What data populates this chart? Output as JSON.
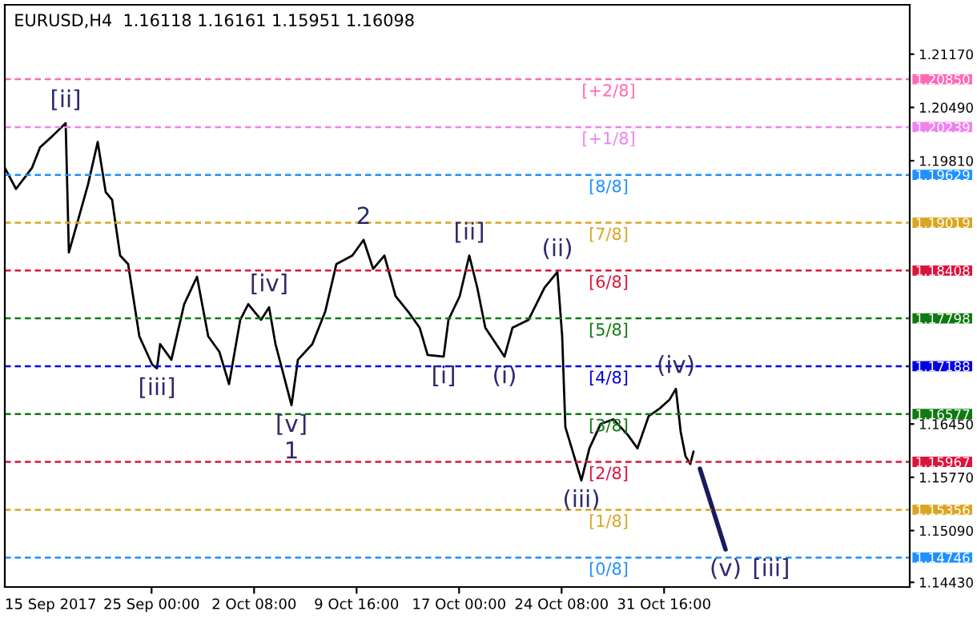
{
  "chart_data": {
    "type": "line",
    "title": "EURUSD,H4  1.16118 1.16161 1.15951 1.16098",
    "series": [
      {
        "color": "#000000",
        "x": [
          "2017-09-14T12:00",
          "2017-09-15T07:15",
          "2017-09-16T10:45",
          "2017-09-17T00:30",
          "2017-09-17T22:30",
          "2017-09-18T20:30",
          "2017-09-19T02:00",
          "2017-09-19T15:45",
          "2017-09-20T11:00",
          "2017-09-21T03:30",
          "2017-09-21T17:15",
          "2017-09-22T04:15",
          "2017-09-22T18:00",
          "2017-09-23T07:45",
          "2017-09-24T03:00",
          "2017-09-25T01:00",
          "2017-09-25T09:15",
          "2017-09-25T14:45",
          "2017-09-26T10:00",
          "2017-09-27T08:00",
          "2017-09-28T06:00",
          "2017-09-29T01:15",
          "2017-09-29T20:30",
          "2017-09-30T13:00",
          "2017-10-01T08:15",
          "2017-10-01T22:00",
          "2017-10-02T20:00",
          "2017-10-03T09:45",
          "2017-10-03T20:45",
          "2017-10-04T07:45",
          "2017-10-05T00:15",
          "2017-10-05T11:15",
          "2017-10-06T12:00",
          "2017-10-07T10:00",
          "2017-10-08T05:15",
          "2017-10-09T08:45",
          "2017-10-10T04:00",
          "2017-10-10T20:30",
          "2017-10-11T15:45",
          "2017-10-12T11:00",
          "2017-10-13T09:00",
          "2017-10-14T04:15",
          "2017-10-14T18:00",
          "2017-10-15T21:30",
          "2017-10-16T05:45",
          "2017-10-17T01:00",
          "2017-10-17T17:30",
          "2017-10-18T07:15",
          "2017-10-18T21:00",
          "2017-10-20T06:00",
          "2017-10-20T19:45",
          "2017-10-21T23:15",
          "2017-10-23T02:45",
          "2017-10-24T00:45",
          "2017-10-24T09:00",
          "2017-10-24T14:30",
          "2017-10-25T01:30",
          "2017-10-25T18:00",
          "2017-10-26T07:45",
          "2017-10-27T03:00",
          "2017-10-28T01:00",
          "2017-10-29T01:45",
          "2017-10-29T18:15",
          "2017-10-30T13:30",
          "2017-10-31T08:45",
          "2017-11-01T01:15",
          "2017-11-01T12:15",
          "2017-11-01T20:30",
          "2017-11-02T04:45",
          "2017-11-02T13:00",
          "2017-11-02T18:30"
        ],
        "values": [
          1.1972,
          1.1945,
          1.1972,
          1.1998,
          1.2013,
          1.2029,
          1.1864,
          1.19,
          1.1951,
          1.2005,
          1.1941,
          1.1931,
          1.186,
          1.1849,
          1.1757,
          1.1721,
          1.1716,
          1.1747,
          1.1727,
          1.1798,
          1.1833,
          1.1757,
          1.1737,
          1.1696,
          1.1778,
          1.1798,
          1.1778,
          1.1794,
          1.1747,
          1.1716,
          1.1669,
          1.1727,
          1.1747,
          1.1788,
          1.1849,
          1.186,
          1.188,
          1.1843,
          1.186,
          1.1808,
          1.1788,
          1.1768,
          1.1733,
          1.1731,
          1.1778,
          1.1808,
          1.186,
          1.1819,
          1.1768,
          1.1731,
          1.1768,
          1.1778,
          1.1819,
          1.1839,
          1.1757,
          1.1641,
          1.1614,
          1.1573,
          1.1614,
          1.1645,
          1.1651,
          1.1631,
          1.1614,
          1.1655,
          1.1665,
          1.1676,
          1.169,
          1.1635,
          1.1604,
          1.1594,
          1.161
        ]
      },
      {
        "color": "#1a1a5e",
        "x": [
          "2017-11-03T05:30",
          "2017-11-05T01:30"
        ],
        "values": [
          1.1588,
          1.1485
        ]
      }
    ],
    "xlim": [
      "2017-09-14T12:00",
      "2017-11-18T05:45"
    ],
    "ylim": [
      1.1437,
      1.218
    ],
    "xticks": [
      {
        "value": "2017-09-25T00:00",
        "label": "25 Sep 00:00"
      },
      {
        "value": "2017-10-02T08:00",
        "label": "2 Oct 08:00"
      },
      {
        "value": "2017-10-09T16:00",
        "label": "9 Oct 16:00"
      },
      {
        "value": "2017-10-17T00:00",
        "label": "17 Oct 00:00"
      },
      {
        "value": "2017-10-24T08:00",
        "label": "24 Oct 08:00"
      },
      {
        "value": "2017-10-31T16:00",
        "label": "31 Oct 16:00"
      }
    ],
    "yticks": [
      {
        "value": 1.2117,
        "label": "1.21170"
      },
      {
        "value": 1.2049,
        "label": "1.20490"
      },
      {
        "value": 1.1981,
        "label": "1.19810"
      },
      {
        "value": 1.1645,
        "label": "1.16450"
      },
      {
        "value": 1.1577,
        "label": "1.15770"
      },
      {
        "value": 1.1509,
        "label": "1.15090"
      },
      {
        "value": 1.1443,
        "label": "1.14430"
      }
    ],
    "ref_lines": [
      {
        "axis": "y",
        "value": 1.2085,
        "label": "1.20850",
        "color": "#ff69b4",
        "line_style": "dashed"
      },
      {
        "axis": "y",
        "value": 1.20239,
        "label": "1.20239",
        "color": "#ee82ee",
        "line_style": "dashed"
      },
      {
        "axis": "y",
        "value": 1.19629,
        "label": "1.19629",
        "color": "#1e90ff",
        "line_style": "dashed"
      },
      {
        "axis": "y",
        "value": 1.19019,
        "label": "1.19019",
        "color": "#daa520",
        "line_style": "dashed"
      },
      {
        "axis": "y",
        "value": 1.18408,
        "label": "1.18408",
        "color": "#dc143c",
        "line_style": "dashed"
      },
      {
        "axis": "y",
        "value": 1.17798,
        "label": "1.17798",
        "color": "#0f7a0f",
        "line_style": "dashed"
      },
      {
        "axis": "y",
        "value": 1.17188,
        "label": "1.17188",
        "color": "#0000e0",
        "line_style": "dashed"
      },
      {
        "axis": "y",
        "value": 1.16577,
        "label": "1.16577",
        "color": "#0f7a0f",
        "line_style": "dashed"
      },
      {
        "axis": "y",
        "value": 1.15967,
        "label": "1.15967",
        "color": "#dc143c",
        "line_style": "dashed"
      },
      {
        "axis": "y",
        "value": 1.15356,
        "label": "1.15356",
        "color": "#daa520",
        "line_style": "dashed"
      },
      {
        "axis": "y",
        "value": 1.14746,
        "label": "1.14746",
        "color": "#1e90ff",
        "line_style": "dashed"
      }
    ],
    "annotations": [
      "15 Sep 2017",
      {
        "text": "[+2/8]",
        "x": "2017-10-27T16:45",
        "y": 1.2085
      },
      {
        "text": "[+1/8]",
        "x": "2017-10-27T16:45",
        "y": 1.20239
      },
      {
        "text": "[8/8]",
        "x": "2017-10-27T16:45",
        "y": 1.19629
      },
      {
        "text": "[7/8]",
        "x": "2017-10-27T16:45",
        "y": 1.19019
      },
      {
        "text": "[6/8]",
        "x": "2017-10-27T16:45",
        "y": 1.18408
      },
      {
        "text": "[5/8]",
        "x": "2017-10-27T16:45",
        "y": 1.17798
      },
      {
        "text": "[4/8]",
        "x": "2017-10-27T16:45",
        "y": 1.17188
      },
      {
        "text": "[3/8]",
        "x": "2017-10-27T16:45",
        "y": 1.16577
      },
      {
        "text": "[2/8]",
        "x": "2017-10-27T16:45",
        "y": 1.15967
      },
      {
        "text": "[1/8]",
        "x": "2017-10-27T16:45",
        "y": 1.15356
      },
      {
        "text": "[0/8]",
        "x": "2017-10-27T16:45",
        "y": 1.14746
      },
      {
        "text": "[ii]",
        "x": "2017-09-18T20:30",
        "y": 1.2029
      },
      {
        "text": "[iii]",
        "x": "2017-09-25T09:15",
        "y": 1.1716
      },
      {
        "text": "[iv]",
        "x": "2017-10-03T09:45",
        "y": 1.1794
      },
      {
        "text": "[v]",
        "x": "2017-10-05T00:15",
        "y": 1.1669
      },
      {
        "text": "1",
        "x": "2017-10-05T00:15",
        "y": 1.1669
      },
      {
        "text": "2",
        "x": "2017-10-10T04:00",
        "y": 1.188
      },
      {
        "text": "[i]",
        "x": "2017-10-15T21:30",
        "y": 1.1731
      },
      {
        "text": "[ii]",
        "x": "2017-10-17T17:30",
        "y": 1.186
      },
      {
        "text": "(i)",
        "x": "2017-10-20T06:00",
        "y": 1.1731
      },
      {
        "text": "(ii)",
        "x": "2017-10-24T00:45",
        "y": 1.1839
      },
      {
        "text": "(iii)",
        "x": "2017-10-25T18:00",
        "y": 1.1573
      },
      {
        "text": "(iv)",
        "x": "2017-11-01T12:15",
        "y": 1.169
      },
      {
        "text": "(v)",
        "x": "2017-11-05T01:30",
        "y": 1.1485
      },
      {
        "text": "[iii]",
        "x": "2017-11-05T01:30",
        "y": 1.1485
      }
    ],
    "grid": false,
    "legend": false,
    "marker": "none",
    "line_style": "solid"
  }
}
